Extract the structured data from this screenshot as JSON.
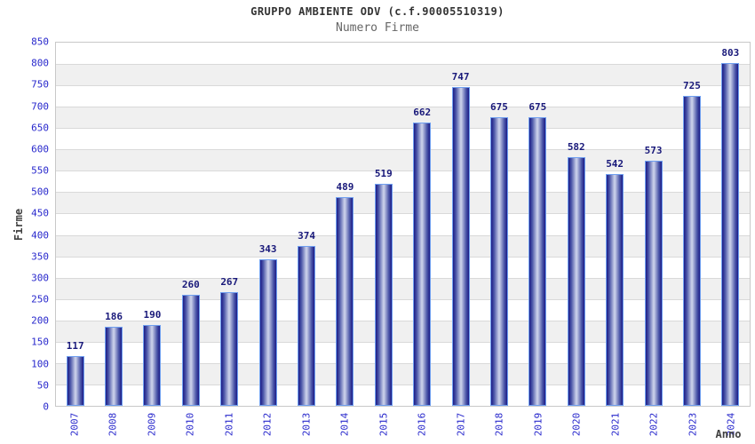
{
  "chart_data": {
    "type": "bar",
    "title": "GRUPPO AMBIENTE ODV (c.f.90005510319)",
    "subtitle": "Numero Firme",
    "xlabel": "Anno",
    "ylabel": "Firme",
    "categories": [
      "2007",
      "2008",
      "2009",
      "2010",
      "2011",
      "2012",
      "2013",
      "2014",
      "2015",
      "2016",
      "2017",
      "2018",
      "2019",
      "2020",
      "2021",
      "2022",
      "2023",
      "2024"
    ],
    "values": [
      117,
      186,
      190,
      260,
      267,
      343,
      374,
      489,
      519,
      662,
      747,
      675,
      675,
      582,
      542,
      573,
      725,
      803
    ],
    "ylim": [
      0,
      850
    ],
    "ytick_step": 50,
    "grid": true,
    "legend": "none",
    "value_labels_shown": true,
    "colors": {
      "axis_text": "#2828cc",
      "value_label": "#19197a",
      "title_text": "#333333",
      "subtitle_text": "#666666",
      "axis_title_text": "#404040",
      "bar_dark": "#1c1c86",
      "bar_mid": "#4a55a8",
      "bar_light": "#c9cfe9",
      "bar_border": "#6f9ff0",
      "band_gray": "#f0f0f0",
      "gridline": "#d9d9d9",
      "plot_border": "#c8c8c8"
    }
  }
}
